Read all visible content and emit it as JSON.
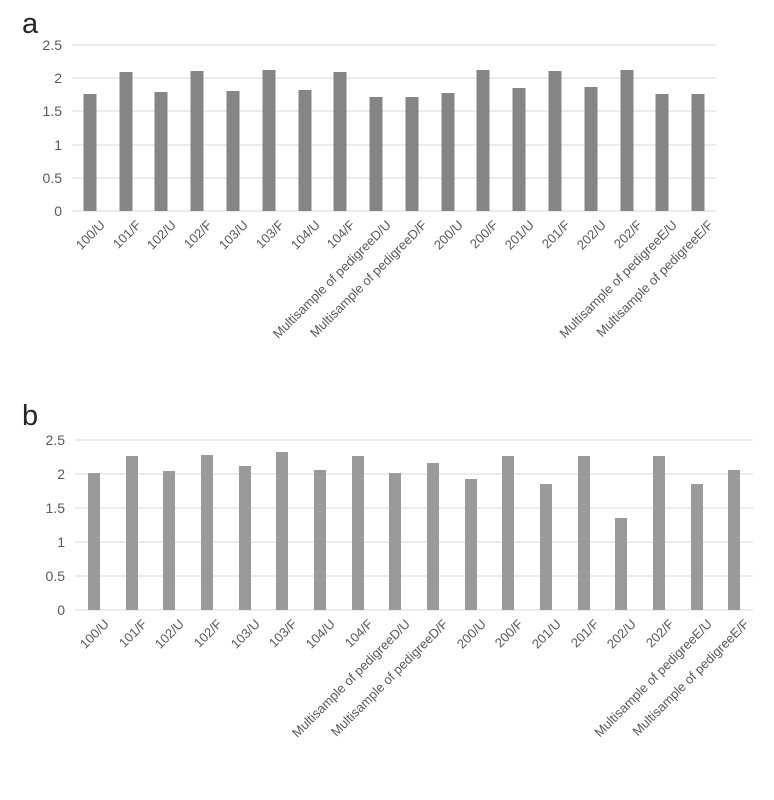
{
  "chart_data": [
    {
      "panel_label": "a",
      "type": "bar",
      "title": "",
      "xlabel": "",
      "ylabel": "",
      "legend": false,
      "grid": true,
      "bar_color": "#858585",
      "grid_color": "#d9d9d9",
      "axis_text_color": "#595959",
      "ylim": [
        0,
        2.5
      ],
      "yticks": [
        0,
        0.5,
        1,
        1.5,
        2,
        2.5
      ],
      "ytick_labels": [
        "0",
        "0.5",
        "1",
        "1.5",
        "2",
        "2.5"
      ],
      "categories": [
        "100/U",
        "101/F",
        "102/U",
        "102/F",
        "103/U",
        "103/F",
        "104/U",
        "104/F",
        "Multisample of pedigreeD/U",
        "Multisample of pedigreeD/F",
        "200/U",
        "200/F",
        "201/U",
        "201/F",
        "202/U",
        "202/F",
        "Multisample of pedigreeE/U",
        "Multisample of pedigreeE/F"
      ],
      "values": [
        1.76,
        2.09,
        1.79,
        2.11,
        1.81,
        2.12,
        1.82,
        2.09,
        1.71,
        1.71,
        1.77,
        2.12,
        1.85,
        2.11,
        1.87,
        2.12,
        1.76,
        1.76
      ]
    },
    {
      "panel_label": "b",
      "type": "bar",
      "title": "",
      "xlabel": "",
      "ylabel": "",
      "legend": false,
      "grid": true,
      "bar_color": "#9a9a9a",
      "grid_color": "#d9d9d9",
      "axis_text_color": "#595959",
      "ylim": [
        0,
        2.5
      ],
      "yticks": [
        0,
        0.5,
        1,
        1.5,
        2,
        2.5
      ],
      "ytick_labels": [
        "0",
        "0.5",
        "1",
        "1.5",
        "2",
        "2.5"
      ],
      "categories": [
        "100/U",
        "101/F",
        "102/U",
        "102/F",
        "103/U",
        "103/F",
        "104/U",
        "104/F",
        "Multisample of pedigreeD/U",
        "Multisample of pedigreeD/F",
        "200/U",
        "200/F",
        "201/U",
        "201/F",
        "202/U",
        "202/F",
        "Multisample of pedigreeE/U",
        "Multisample of pedigreeE/F"
      ],
      "values": [
        2.02,
        2.26,
        2.05,
        2.28,
        2.12,
        2.32,
        2.06,
        2.26,
        2.02,
        2.16,
        1.92,
        2.26,
        1.85,
        2.27,
        1.35,
        2.26,
        1.85,
        2.06
      ]
    }
  ]
}
